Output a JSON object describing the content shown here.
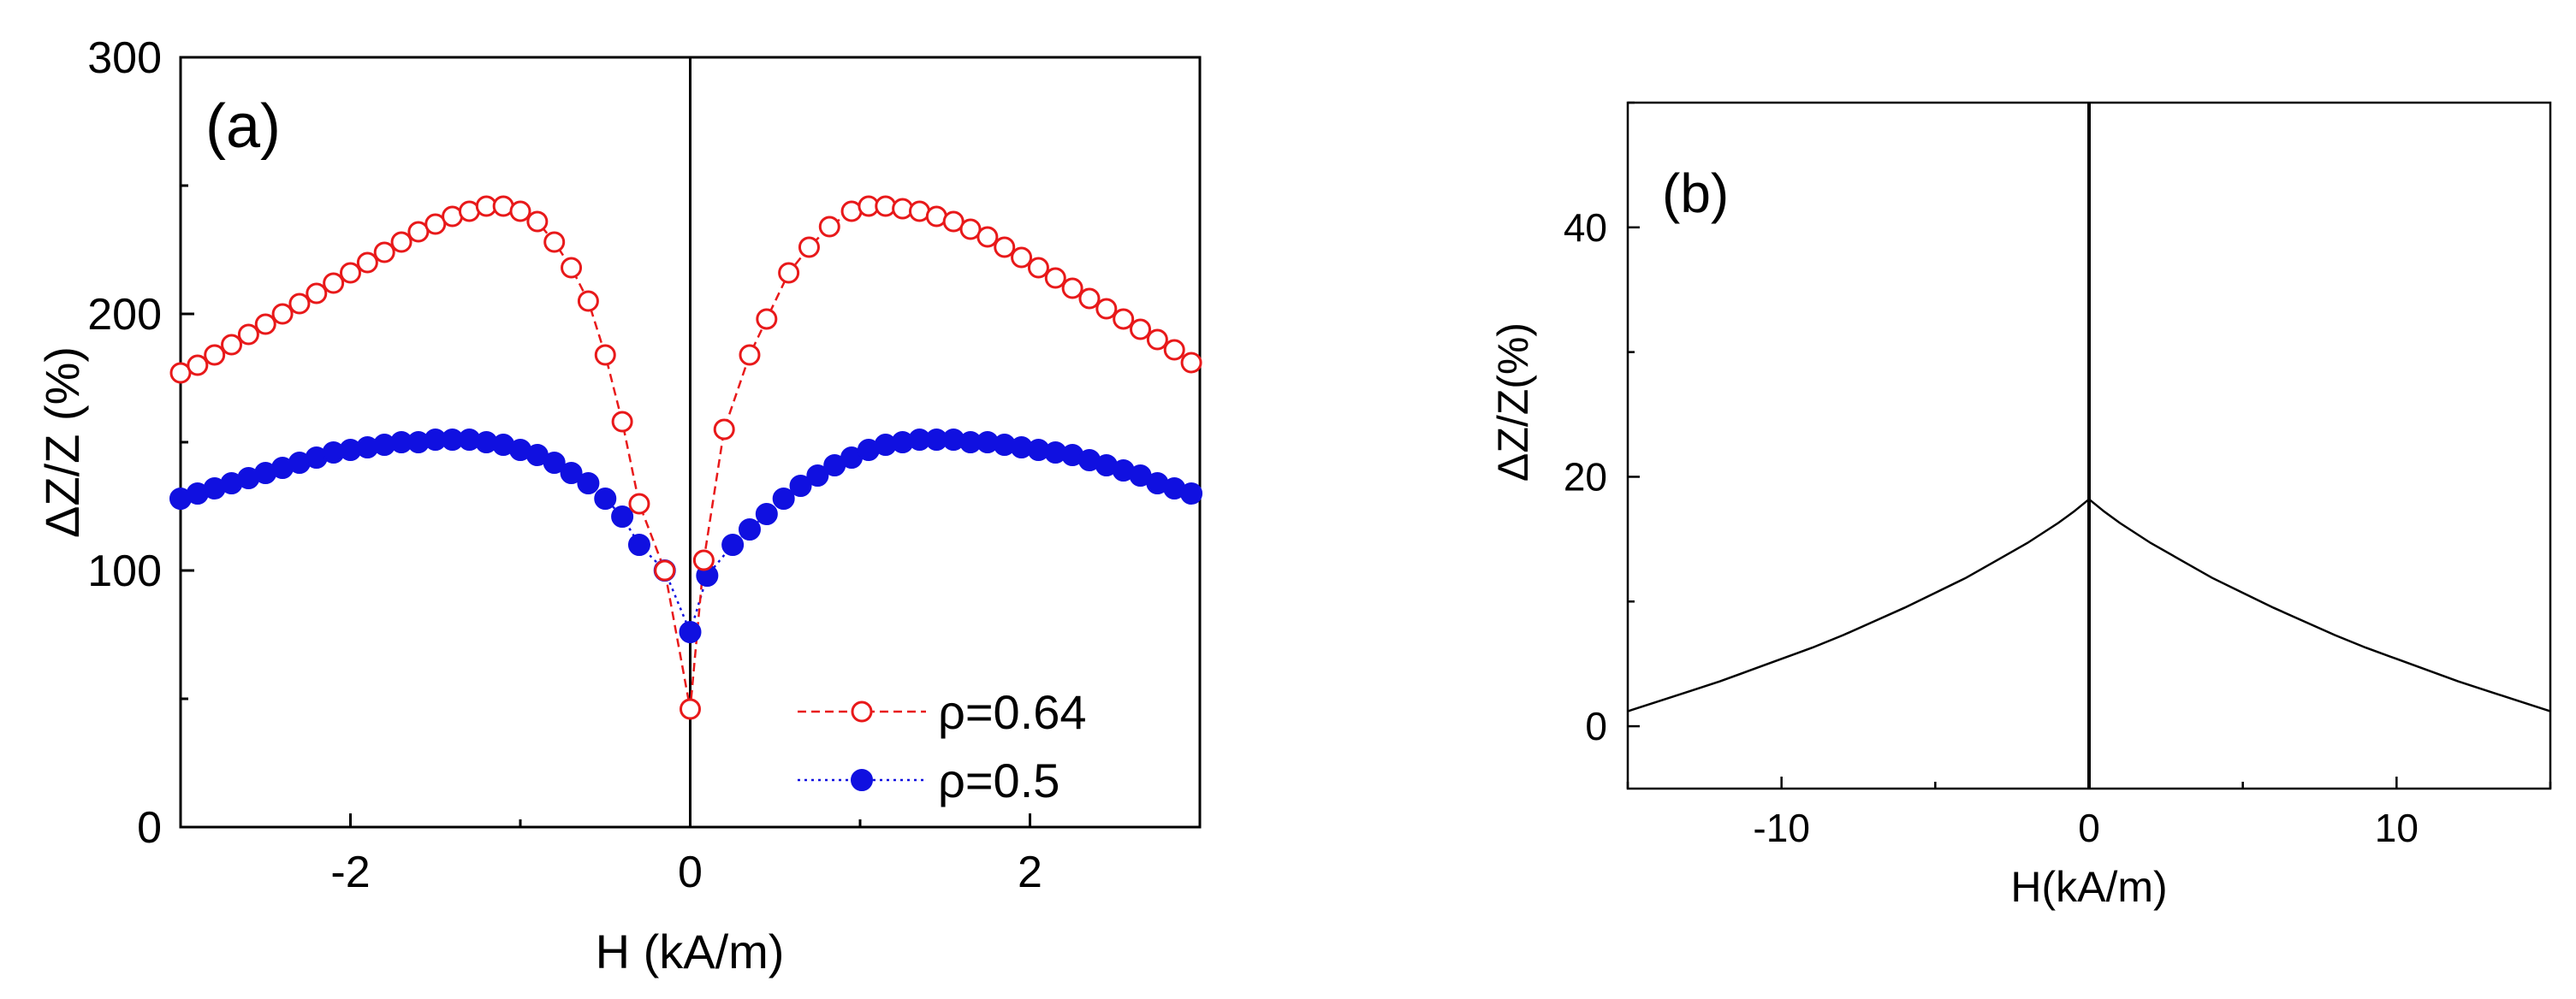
{
  "chart_data": [
    {
      "panel_label": "(a)",
      "type": "scatter",
      "xlabel": "H (kA/m)",
      "ylabel": "ΔZ/Z (%)",
      "xlim": [
        -3,
        3
      ],
      "ylim": [
        0,
        300
      ],
      "xticks": [
        -2,
        0,
        2
      ],
      "xtick_labels": [
        "-2",
        "0",
        "2"
      ],
      "yticks": [
        0,
        100,
        200,
        300
      ],
      "ytick_labels": [
        "0",
        "100",
        "200",
        "300"
      ],
      "zero_line": true,
      "legend": "bottom-right",
      "series": [
        {
          "name": "ρ=0.64",
          "color": "#e8191a",
          "marker": "open-circle",
          "line": "dashed",
          "x": [
            -3.0,
            -2.9,
            -2.8,
            -2.7,
            -2.6,
            -2.5,
            -2.4,
            -2.3,
            -2.2,
            -2.1,
            -2.0,
            -1.9,
            -1.8,
            -1.7,
            -1.6,
            -1.5,
            -1.4,
            -1.3,
            -1.2,
            -1.1,
            -1.0,
            -0.9,
            -0.8,
            -0.7,
            -0.6,
            -0.5,
            -0.4,
            -0.3,
            -0.15,
            0.0,
            0.08,
            0.2,
            0.35,
            0.45,
            0.58,
            0.7,
            0.82,
            0.95,
            1.05,
            1.15,
            1.25,
            1.35,
            1.45,
            1.55,
            1.65,
            1.75,
            1.85,
            1.95,
            2.05,
            2.15,
            2.25,
            2.35,
            2.45,
            2.55,
            2.65,
            2.75,
            2.85,
            2.95
          ],
          "y": [
            177,
            180,
            184,
            188,
            192,
            196,
            200,
            204,
            208,
            212,
            216,
            220,
            224,
            228,
            232,
            235,
            238,
            240,
            242,
            242,
            240,
            236,
            228,
            218,
            205,
            184,
            158,
            126,
            100,
            46,
            104,
            155,
            184,
            198,
            216,
            226,
            234,
            240,
            242,
            242,
            241,
            240,
            238,
            236,
            233,
            230,
            226,
            222,
            218,
            214,
            210,
            206,
            202,
            198,
            194,
            190,
            186,
            181
          ]
        },
        {
          "name": "ρ=0.5",
          "color": "#1010e0",
          "marker": "filled-circle",
          "line": "dotted",
          "x": [
            -3.0,
            -2.9,
            -2.8,
            -2.7,
            -2.6,
            -2.5,
            -2.4,
            -2.3,
            -2.2,
            -2.1,
            -2.0,
            -1.9,
            -1.8,
            -1.7,
            -1.6,
            -1.5,
            -1.4,
            -1.3,
            -1.2,
            -1.1,
            -1.0,
            -0.9,
            -0.8,
            -0.7,
            -0.6,
            -0.5,
            -0.4,
            -0.3,
            -0.15,
            0.0,
            0.1,
            0.25,
            0.35,
            0.45,
            0.55,
            0.65,
            0.75,
            0.85,
            0.95,
            1.05,
            1.15,
            1.25,
            1.35,
            1.45,
            1.55,
            1.65,
            1.75,
            1.85,
            1.95,
            2.05,
            2.15,
            2.25,
            2.35,
            2.45,
            2.55,
            2.65,
            2.75,
            2.85,
            2.95
          ],
          "y": [
            128,
            130,
            132,
            134,
            136,
            138,
            140,
            142,
            144,
            146,
            147,
            148,
            149,
            150,
            150,
            151,
            151,
            151,
            150,
            149,
            147,
            145,
            142,
            138,
            134,
            128,
            121,
            110,
            100,
            76,
            98,
            110,
            116,
            122,
            128,
            133,
            137,
            141,
            144,
            147,
            149,
            150,
            151,
            151,
            151,
            150,
            150,
            149,
            148,
            147,
            146,
            145,
            143,
            141,
            139,
            137,
            134,
            132,
            130
          ]
        }
      ]
    },
    {
      "panel_label": "(b)",
      "type": "line",
      "xlabel": "H(kA/m)",
      "ylabel": "ΔZ/Z(%)",
      "xlim": [
        -15,
        15
      ],
      "ylim": [
        -5,
        50
      ],
      "xticks": [
        -10,
        0,
        10
      ],
      "xtick_labels": [
        "-10",
        "0",
        "10"
      ],
      "yticks": [
        0,
        20,
        40
      ],
      "ytick_labels": [
        "0",
        "20",
        "40"
      ],
      "zero_line": true,
      "series": [
        {
          "color": "#000000",
          "x": [
            -15,
            -14,
            -13,
            -12,
            -11,
            -10,
            -9,
            -8,
            -7,
            -6,
            -5,
            -4,
            -3,
            -2,
            -1,
            -0.5,
            0,
            0.5,
            1,
            2,
            3,
            4,
            5,
            6,
            7,
            8,
            9,
            10,
            11,
            12,
            13,
            14,
            15
          ],
          "y": [
            1.2,
            2.0,
            2.8,
            3.6,
            4.5,
            5.4,
            6.3,
            7.3,
            8.4,
            9.5,
            10.7,
            11.9,
            13.3,
            14.7,
            16.3,
            17.2,
            18.2,
            17.2,
            16.3,
            14.7,
            13.3,
            11.9,
            10.7,
            9.5,
            8.4,
            7.3,
            6.3,
            5.4,
            4.5,
            3.6,
            2.8,
            2.0,
            1.2
          ]
        }
      ]
    }
  ]
}
